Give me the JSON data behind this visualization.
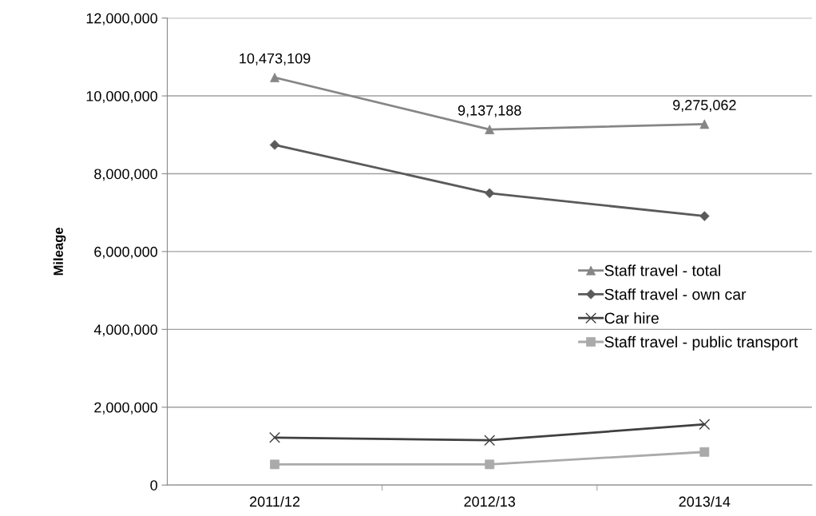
{
  "chart_data": {
    "type": "line",
    "ylabel": "Mileage",
    "categories": [
      "2011/12",
      "2012/13",
      "2013/14"
    ],
    "series": [
      {
        "name": "Staff travel - total",
        "color": "#868686",
        "marker": "triangle",
        "values": [
          10473109,
          9137188,
          9275062
        ],
        "value_labels": [
          "10,473,109",
          "9,137,188",
          "9,275,062"
        ]
      },
      {
        "name": "Staff travel - own car",
        "color": "#5a5a5a",
        "marker": "diamond",
        "values": [
          8740000,
          7500000,
          6910000
        ]
      },
      {
        "name": "Car hire",
        "color": "#404040",
        "marker": "cross",
        "values": [
          1220000,
          1150000,
          1560000
        ]
      },
      {
        "name": "Staff travel - public transport",
        "color": "#aaaaaa",
        "marker": "square",
        "values": [
          530000,
          530000,
          850000
        ]
      }
    ],
    "ylim": [
      0,
      12000000
    ],
    "yticks": [
      {
        "value": 0,
        "label": "0"
      },
      {
        "value": 2000000,
        "label": "2,000,000"
      },
      {
        "value": 4000000,
        "label": "4,000,000"
      },
      {
        "value": 6000000,
        "label": "6,000,000"
      },
      {
        "value": 8000000,
        "label": "8,000,000"
      },
      {
        "value": 10000000,
        "label": "10,000,000"
      },
      {
        "value": 12000000,
        "label": "12,000,000"
      }
    ],
    "grid": "y",
    "legend": "center right",
    "line_style": "solid"
  }
}
